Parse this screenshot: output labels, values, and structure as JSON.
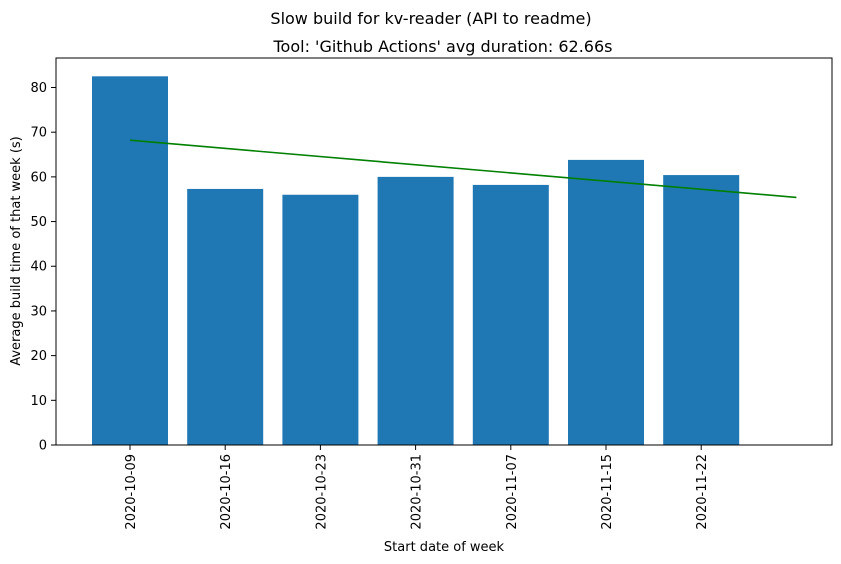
{
  "chart_data": {
    "type": "bar",
    "suptitle": "Slow build for kv-reader (API to readme)",
    "title": "Tool: 'Github Actions' avg duration: 62.66s",
    "xlabel": "Start date of week",
    "ylabel": "Average build time of that week (s)",
    "categories": [
      "2020-10-09",
      "2020-10-16",
      "2020-10-23",
      "2020-10-31",
      "2020-11-07",
      "2020-11-15",
      "2020-11-22"
    ],
    "values": [
      82.5,
      57.3,
      56.0,
      60.0,
      58.2,
      63.8,
      60.4
    ],
    "bar_color": "#1f77b4",
    "trend_line": {
      "start": 68.2,
      "end": 55.4,
      "color": "#008000"
    },
    "ylim": [
      0,
      86.6
    ],
    "yticks": [
      0,
      10,
      20,
      30,
      40,
      50,
      60,
      70,
      80
    ],
    "grid": false,
    "legend": false
  }
}
